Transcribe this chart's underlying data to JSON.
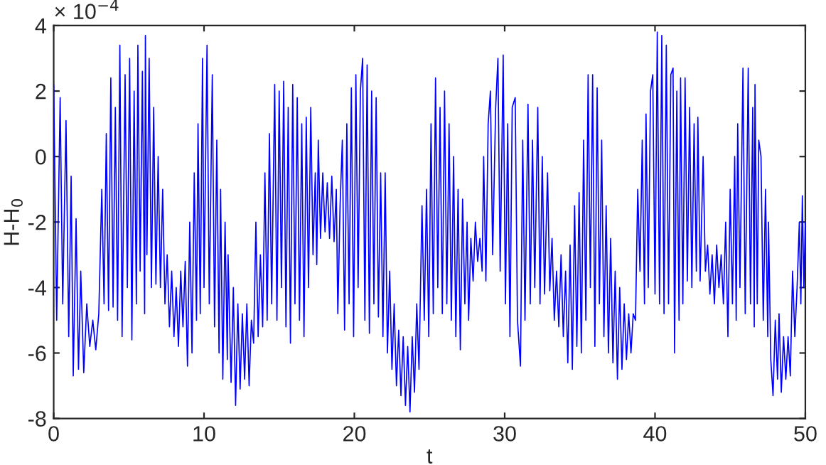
{
  "chart_data": {
    "type": "line",
    "xlabel": "t",
    "ylabel": "H-H$_{0}$",
    "annotations": [
      "× 10$^{−4}$"
    ],
    "xlim": [
      0,
      50
    ],
    "xticks": [
      0,
      10,
      20,
      30,
      40,
      50
    ],
    "ylim": [
      -8,
      4
    ],
    "yticks": [
      -8,
      -6,
      -4,
      -2,
      0,
      2,
      4
    ],
    "grid": false,
    "legend": false,
    "marker": "none",
    "line_style": "solid",
    "series": [
      {
        "color": "#0000ff",
        "x": [
          0,
          0.2,
          0.43,
          0.6,
          0.82,
          1.0,
          1.16,
          1.3,
          1.49,
          1.65,
          1.8,
          2.0,
          2.2,
          2.4,
          2.6,
          2.8,
          3.0,
          3.2,
          3.35,
          3.5,
          3.65,
          3.8,
          3.95,
          4.1,
          4.25,
          4.4,
          4.55,
          4.75,
          4.9,
          5.05,
          5.2,
          5.35,
          5.5,
          5.6,
          5.75,
          5.9,
          6.05,
          6.1,
          6.2,
          6.35,
          6.5,
          6.65,
          6.8,
          6.95,
          7.1,
          7.25,
          7.4,
          7.55,
          7.7,
          7.85,
          8.0,
          8.15,
          8.3,
          8.45,
          8.6,
          8.75,
          8.9,
          9.05,
          9.2,
          9.35,
          9.5,
          9.6,
          9.75,
          9.9,
          10.0,
          10.2,
          10.35,
          10.55,
          10.7,
          10.85,
          11.0,
          11.1,
          11.25,
          11.4,
          11.55,
          11.6,
          11.8,
          11.95,
          12.1,
          12.25,
          12.4,
          12.55,
          12.7,
          12.85,
          13.0,
          13.15,
          13.3,
          13.45,
          13.6,
          13.75,
          13.9,
          14.05,
          14.2,
          14.35,
          14.5,
          14.7,
          14.85,
          15.0,
          15.15,
          15.3,
          15.45,
          15.6,
          15.75,
          15.9,
          16.05,
          16.2,
          16.35,
          16.5,
          16.65,
          16.8,
          16.95,
          17.1,
          17.25,
          17.4,
          17.5,
          17.6,
          17.75,
          17.9,
          18.05,
          18.2,
          18.35,
          18.5,
          18.65,
          18.8,
          18.9,
          19.05,
          19.2,
          19.35,
          19.5,
          19.65,
          19.8,
          19.95,
          20.1,
          20.25,
          20.4,
          20.55,
          20.7,
          20.85,
          21.0,
          21.15,
          21.3,
          21.45,
          21.6,
          21.75,
          21.9,
          22.05,
          22.2,
          22.35,
          22.5,
          22.65,
          22.8,
          22.95,
          23.1,
          23.25,
          23.4,
          23.55,
          23.7,
          23.85,
          24.0,
          24.15,
          24.3,
          24.5,
          24.65,
          24.8,
          24.95,
          25.1,
          25.25,
          25.4,
          25.55,
          25.7,
          25.85,
          26.0,
          26.15,
          26.3,
          26.45,
          26.6,
          26.75,
          26.9,
          27.05,
          27.2,
          27.35,
          27.5,
          27.6,
          27.75,
          27.9,
          28.05,
          28.2,
          28.35,
          28.5,
          28.6,
          28.75,
          28.9,
          29.05,
          29.2,
          29.4,
          29.55,
          29.7,
          29.9,
          30.05,
          30.2,
          30.35,
          30.5,
          30.7,
          30.85,
          31.05,
          31.2,
          31.35,
          31.55,
          31.7,
          31.85,
          32.0,
          32.2,
          32.35,
          32.5,
          32.65,
          32.85,
          33.0,
          33.15,
          33.3,
          33.45,
          33.6,
          33.75,
          33.9,
          34.05,
          34.2,
          34.35,
          34.5,
          34.65,
          34.8,
          34.95,
          35.1,
          35.25,
          35.4,
          35.55,
          35.7,
          35.85,
          36.0,
          36.15,
          36.3,
          36.45,
          36.6,
          36.75,
          36.9,
          37.05,
          37.2,
          37.35,
          37.5,
          37.65,
          37.8,
          37.95,
          38.1,
          38.25,
          38.4,
          38.55,
          38.7,
          38.85,
          39.0,
          39.15,
          39.3,
          39.4,
          39.55,
          39.7,
          39.85,
          40.0,
          40.15,
          40.3,
          40.45,
          40.6,
          40.75,
          40.9,
          41.05,
          41.2,
          41.3,
          41.45,
          41.6,
          41.7,
          41.85,
          42.0,
          42.15,
          42.3,
          42.45,
          42.6,
          42.75,
          42.85,
          43.0,
          43.2,
          43.35,
          43.5,
          43.65,
          43.8,
          43.95,
          44.1,
          44.25,
          44.4,
          44.55,
          44.7,
          44.85,
          45.0,
          45.15,
          45.3,
          45.4,
          45.5,
          45.65,
          45.85,
          46.0,
          46.2,
          46.35,
          46.5,
          46.6,
          46.65,
          46.8,
          46.9,
          47.05,
          47.2,
          47.35,
          47.5,
          47.55,
          47.7,
          47.85,
          48.0,
          48.15,
          48.25,
          48.4,
          48.55,
          48.7,
          48.85,
          49.0,
          49.15,
          49.3,
          49.45,
          49.6,
          49.7,
          49.8,
          49.9,
          50.0
        ],
        "values": [
          2.2,
          -5.0,
          1.8,
          -4.5,
          1.1,
          -5.5,
          -0.6,
          -6.7,
          -1.9,
          -6.5,
          -3.5,
          -6.6,
          -4.5,
          -5.8,
          -5.0,
          -5.9,
          -4.8,
          -1.0,
          -4.5,
          0.7,
          -4.7,
          2.4,
          -4.6,
          1.5,
          -5.0,
          3.4,
          -5.5,
          2.5,
          -4.0,
          3.0,
          -5.6,
          2.0,
          -4.5,
          3.4,
          -3.5,
          2.6,
          -4.8,
          3.7,
          -3.0,
          3.0,
          -4.0,
          1.5,
          -3.9,
          0.0,
          -4.0,
          -1.0,
          -4.5,
          -3.0,
          -5.2,
          -3.5,
          -5.5,
          -4.0,
          -5.8,
          -3.5,
          -5.2,
          -3.2,
          -6.4,
          -2.0,
          -6.0,
          -0.5,
          -5.0,
          1.0,
          -4.8,
          3.0,
          -4.0,
          3.4,
          -4.5,
          2.5,
          -5.2,
          0.5,
          -6.0,
          -1.0,
          -6.8,
          -2.0,
          -6.2,
          -3.0,
          -6.9,
          -4.0,
          -7.6,
          -4.5,
          -7.1,
          -4.8,
          -6.8,
          -4.5,
          -7.0,
          -5.0,
          -5.7,
          -2.0,
          -5.5,
          -3.0,
          -5.2,
          -0.5,
          -5.0,
          0.7,
          -4.5,
          2.2,
          -5.0,
          2.0,
          -4.0,
          2.3,
          -5.2,
          1.5,
          -5.7,
          2.2,
          -4.5,
          1.8,
          -5.0,
          1.0,
          -5.5,
          1.2,
          -4.0,
          1.5,
          -3.0,
          -0.5,
          -3.3,
          0.5,
          -2.5,
          -0.5,
          -2.3,
          -0.8,
          -2.5,
          -0.6,
          -2.6,
          -1.0,
          -4.8,
          -1.5,
          0.5,
          -5.3,
          1.0,
          -4.5,
          2.1,
          -5.5,
          2.5,
          -4.0,
          2.0,
          3.0,
          -5.0,
          2.8,
          -5.4,
          2.0,
          -4.5,
          1.8,
          -4.9,
          -0.5,
          -5.5,
          -0.5,
          -6.0,
          -3.5,
          -6.5,
          -4.5,
          -7.0,
          -5.3,
          -7.3,
          -5.5,
          -7.6,
          -5.8,
          -7.8,
          -5.5,
          -7.2,
          -4.5,
          -6.5,
          -1.5,
          -5.0,
          -1.0,
          -5.5,
          1.0,
          -4.8,
          2.4,
          -4.0,
          1.5,
          -4.8,
          2.0,
          -4.5,
          1.0,
          -5.0,
          0.0,
          -5.5,
          -1.0,
          -5.9,
          -1.3,
          -4.5,
          -2.0,
          -5.0,
          -2.5,
          -3.8,
          -2.0,
          -3.2,
          -2.5,
          -3.5,
          0.0,
          -3.8,
          1.0,
          2.0,
          -3.0,
          1.5,
          3.0,
          -3.5,
          3.1,
          -4.5,
          1.0,
          -5.5,
          1.5,
          1.8,
          -5.0,
          -6.4,
          0.5,
          -5.0,
          1.6,
          -4.5,
          0.5,
          -4.0,
          1.5,
          -4.5,
          0.0,
          -4.2,
          -0.5,
          -4.1,
          -2.5,
          -5.0,
          -3.5,
          -5.2,
          -3.0,
          -5.5,
          -3.5,
          -6.3,
          -2.7,
          -6.5,
          -1.5,
          -5.8,
          -1.1,
          -6.0,
          0.5,
          -5.0,
          2.5,
          -4.0,
          2.5,
          -5.8,
          2.1,
          -4.5,
          0.5,
          -5.5,
          -1.5,
          -6.0,
          -2.5,
          -6.3,
          -3.5,
          -6.8,
          -4.0,
          -6.5,
          -4.5,
          -6.2,
          -4.8,
          -6.0,
          -4.8,
          -5.0,
          -1.0,
          -3.5,
          0.5,
          -4.5,
          1.3,
          -4.0,
          2.0,
          2.5,
          -4.2,
          3.8,
          -4.5,
          3.7,
          -4.8,
          3.4,
          -4.5,
          2.5,
          2.7,
          -6.0,
          2.0,
          -5.0,
          2.4,
          -4.5,
          2.4,
          -3.8,
          1.5,
          -4.0,
          1.0,
          -3.5,
          1.2,
          -3.8,
          0.0,
          -3.5,
          -2.7,
          -4.2,
          -3.0,
          -4.5,
          -2.7,
          -4.0,
          -3.0,
          -4.5,
          -2.0,
          -5.5,
          -1.0,
          -4.5,
          0.0,
          -5.0,
          1.0,
          -4.0,
          2.7,
          -4.8,
          2.7,
          -4.5,
          1.5,
          -5.2,
          2.2,
          -4.5,
          0.5,
          0.0,
          -5.0,
          -1.0,
          -5.5,
          -2.0,
          -6.2,
          -7.3,
          -5.0,
          -6.8,
          -4.8,
          -7.2,
          -5.5,
          -6.8,
          -5.5,
          -6.7,
          -3.5,
          -5.5,
          -4.0,
          -2.0,
          -4.5,
          -1.2,
          -4.0,
          -2.0
        ]
      }
    ]
  }
}
